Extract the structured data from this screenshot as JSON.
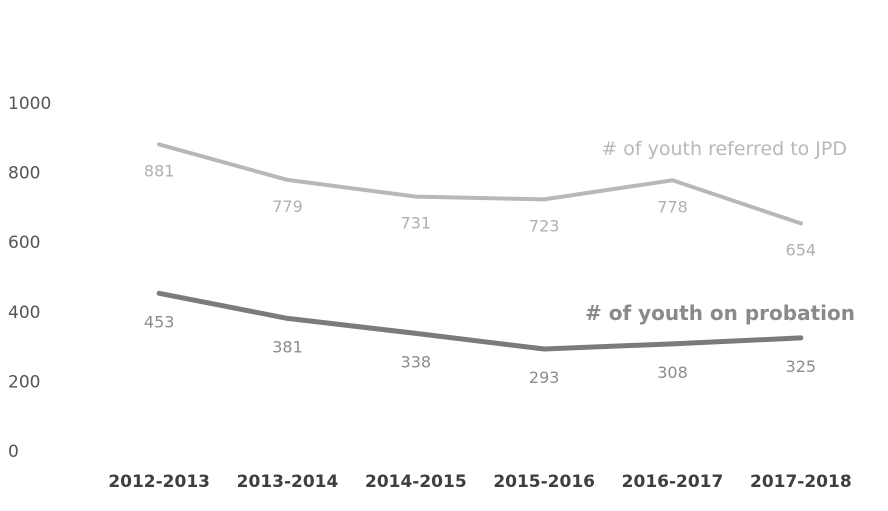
{
  "chart_data": {
    "type": "line",
    "categories": [
      "2012-2013",
      "2013-2014",
      "2014-2015",
      "2015-2016",
      "2016-2017",
      "2017-2018"
    ],
    "ylim": [
      0,
      1000
    ],
    "yticks": [
      0,
      200,
      400,
      600,
      800,
      1000
    ],
    "grid": false,
    "legend": "none",
    "series": [
      {
        "name": "# of youth referred to JPD",
        "values": [
          881,
          779,
          731,
          723,
          778,
          654
        ],
        "color": "#b8b8b8",
        "label_color": "#b0b0b0"
      },
      {
        "name": "# of youth on probation",
        "values": [
          453,
          381,
          338,
          293,
          308,
          325
        ],
        "color": "#7b7b7b",
        "label_color": "#8c8c8c"
      }
    ]
  }
}
